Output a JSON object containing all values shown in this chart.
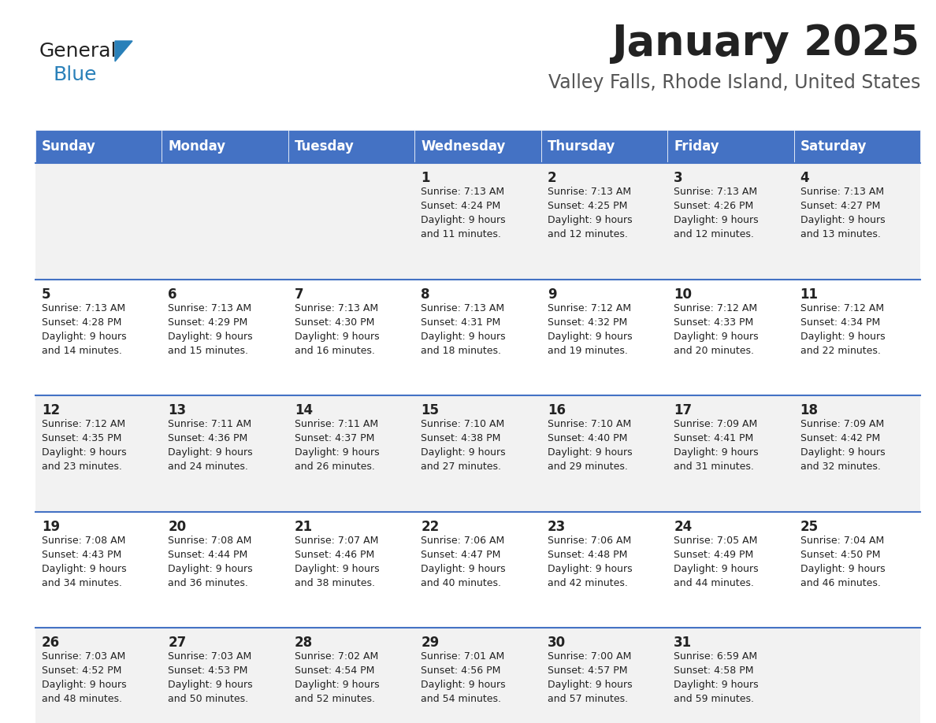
{
  "title": "January 2025",
  "subtitle": "Valley Falls, Rhode Island, United States",
  "days_of_week": [
    "Sunday",
    "Monday",
    "Tuesday",
    "Wednesday",
    "Thursday",
    "Friday",
    "Saturday"
  ],
  "header_bg": "#4472C4",
  "header_text_color": "#FFFFFF",
  "cell_bg_odd": "#F2F2F2",
  "cell_bg_even": "#FFFFFF",
  "cell_text_color": "#222222",
  "day_number_color": "#222222",
  "divider_color": "#4472C4",
  "title_color": "#222222",
  "subtitle_color": "#555555",
  "logo_general_color": "#222222",
  "logo_blue_color": "#2980B9",
  "weeks": [
    [
      {
        "day": null,
        "info": null
      },
      {
        "day": null,
        "info": null
      },
      {
        "day": null,
        "info": null
      },
      {
        "day": 1,
        "info": "Sunrise: 7:13 AM\nSunset: 4:24 PM\nDaylight: 9 hours\nand 11 minutes."
      },
      {
        "day": 2,
        "info": "Sunrise: 7:13 AM\nSunset: 4:25 PM\nDaylight: 9 hours\nand 12 minutes."
      },
      {
        "day": 3,
        "info": "Sunrise: 7:13 AM\nSunset: 4:26 PM\nDaylight: 9 hours\nand 12 minutes."
      },
      {
        "day": 4,
        "info": "Sunrise: 7:13 AM\nSunset: 4:27 PM\nDaylight: 9 hours\nand 13 minutes."
      }
    ],
    [
      {
        "day": 5,
        "info": "Sunrise: 7:13 AM\nSunset: 4:28 PM\nDaylight: 9 hours\nand 14 minutes."
      },
      {
        "day": 6,
        "info": "Sunrise: 7:13 AM\nSunset: 4:29 PM\nDaylight: 9 hours\nand 15 minutes."
      },
      {
        "day": 7,
        "info": "Sunrise: 7:13 AM\nSunset: 4:30 PM\nDaylight: 9 hours\nand 16 minutes."
      },
      {
        "day": 8,
        "info": "Sunrise: 7:13 AM\nSunset: 4:31 PM\nDaylight: 9 hours\nand 18 minutes."
      },
      {
        "day": 9,
        "info": "Sunrise: 7:12 AM\nSunset: 4:32 PM\nDaylight: 9 hours\nand 19 minutes."
      },
      {
        "day": 10,
        "info": "Sunrise: 7:12 AM\nSunset: 4:33 PM\nDaylight: 9 hours\nand 20 minutes."
      },
      {
        "day": 11,
        "info": "Sunrise: 7:12 AM\nSunset: 4:34 PM\nDaylight: 9 hours\nand 22 minutes."
      }
    ],
    [
      {
        "day": 12,
        "info": "Sunrise: 7:12 AM\nSunset: 4:35 PM\nDaylight: 9 hours\nand 23 minutes."
      },
      {
        "day": 13,
        "info": "Sunrise: 7:11 AM\nSunset: 4:36 PM\nDaylight: 9 hours\nand 24 minutes."
      },
      {
        "day": 14,
        "info": "Sunrise: 7:11 AM\nSunset: 4:37 PM\nDaylight: 9 hours\nand 26 minutes."
      },
      {
        "day": 15,
        "info": "Sunrise: 7:10 AM\nSunset: 4:38 PM\nDaylight: 9 hours\nand 27 minutes."
      },
      {
        "day": 16,
        "info": "Sunrise: 7:10 AM\nSunset: 4:40 PM\nDaylight: 9 hours\nand 29 minutes."
      },
      {
        "day": 17,
        "info": "Sunrise: 7:09 AM\nSunset: 4:41 PM\nDaylight: 9 hours\nand 31 minutes."
      },
      {
        "day": 18,
        "info": "Sunrise: 7:09 AM\nSunset: 4:42 PM\nDaylight: 9 hours\nand 32 minutes."
      }
    ],
    [
      {
        "day": 19,
        "info": "Sunrise: 7:08 AM\nSunset: 4:43 PM\nDaylight: 9 hours\nand 34 minutes."
      },
      {
        "day": 20,
        "info": "Sunrise: 7:08 AM\nSunset: 4:44 PM\nDaylight: 9 hours\nand 36 minutes."
      },
      {
        "day": 21,
        "info": "Sunrise: 7:07 AM\nSunset: 4:46 PM\nDaylight: 9 hours\nand 38 minutes."
      },
      {
        "day": 22,
        "info": "Sunrise: 7:06 AM\nSunset: 4:47 PM\nDaylight: 9 hours\nand 40 minutes."
      },
      {
        "day": 23,
        "info": "Sunrise: 7:06 AM\nSunset: 4:48 PM\nDaylight: 9 hours\nand 42 minutes."
      },
      {
        "day": 24,
        "info": "Sunrise: 7:05 AM\nSunset: 4:49 PM\nDaylight: 9 hours\nand 44 minutes."
      },
      {
        "day": 25,
        "info": "Sunrise: 7:04 AM\nSunset: 4:50 PM\nDaylight: 9 hours\nand 46 minutes."
      }
    ],
    [
      {
        "day": 26,
        "info": "Sunrise: 7:03 AM\nSunset: 4:52 PM\nDaylight: 9 hours\nand 48 minutes."
      },
      {
        "day": 27,
        "info": "Sunrise: 7:03 AM\nSunset: 4:53 PM\nDaylight: 9 hours\nand 50 minutes."
      },
      {
        "day": 28,
        "info": "Sunrise: 7:02 AM\nSunset: 4:54 PM\nDaylight: 9 hours\nand 52 minutes."
      },
      {
        "day": 29,
        "info": "Sunrise: 7:01 AM\nSunset: 4:56 PM\nDaylight: 9 hours\nand 54 minutes."
      },
      {
        "day": 30,
        "info": "Sunrise: 7:00 AM\nSunset: 4:57 PM\nDaylight: 9 hours\nand 57 minutes."
      },
      {
        "day": 31,
        "info": "Sunrise: 6:59 AM\nSunset: 4:58 PM\nDaylight: 9 hours\nand 59 minutes."
      },
      {
        "day": null,
        "info": null
      }
    ]
  ],
  "fig_width": 11.88,
  "fig_height": 9.18,
  "dpi": 100
}
